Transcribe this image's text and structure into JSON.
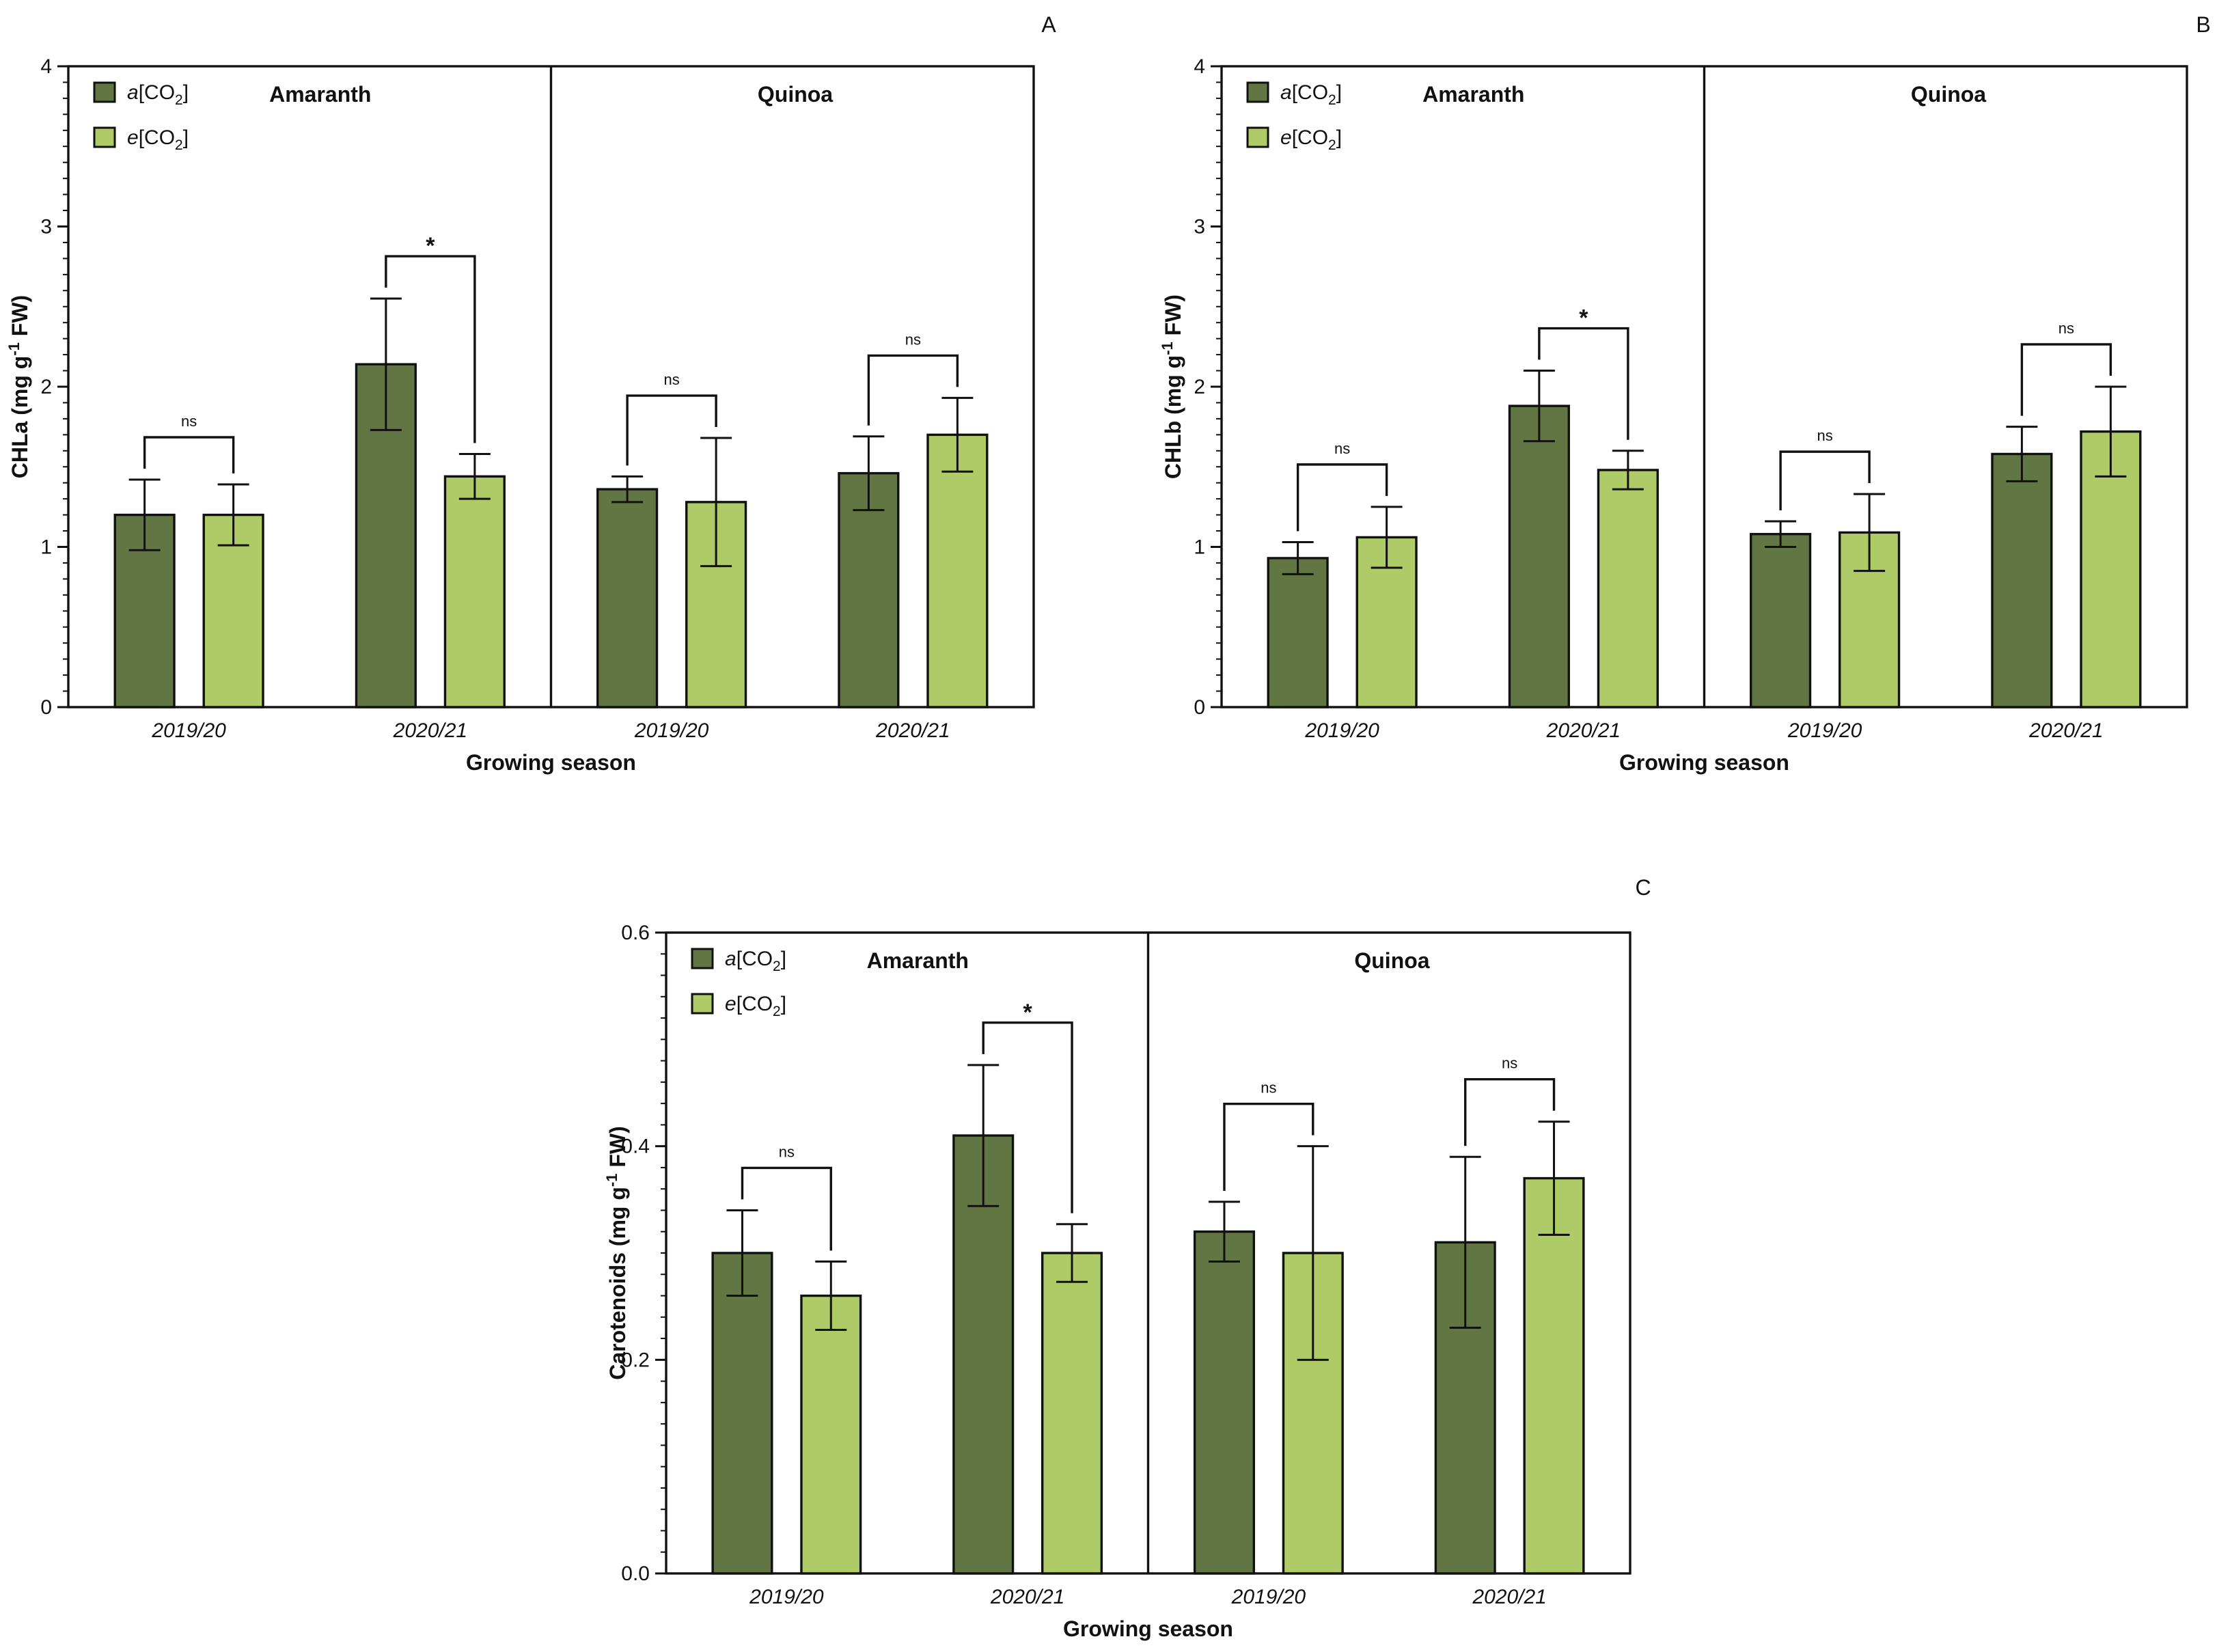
{
  "figure": {
    "x_title": "Growing season",
    "legend": [
      {
        "prefix": "a",
        "text": "[CO",
        "sub": "2",
        "suffix": "]",
        "color": "#627644"
      },
      {
        "prefix": "e",
        "text": "[CO",
        "sub": "2",
        "suffix": "]",
        "color": "#aecb68"
      }
    ],
    "groups": [
      "Amaranth",
      "Quinoa"
    ],
    "colors": {
      "ambient": "#627644",
      "elevated": "#aecb68",
      "axis": "#111111"
    }
  },
  "chart_data": [
    {
      "panel": "A",
      "type": "bar",
      "ylabel": {
        "main": "CHLa (mg g",
        "sup": "-1",
        "tail": " FW)"
      },
      "xlabel": "Growing season",
      "ylim": [
        0,
        4
      ],
      "yticks": [
        "0",
        "1",
        "2",
        "3",
        "4"
      ],
      "groups": [
        "Amaranth",
        "Quinoa"
      ],
      "categories": [
        "2019/20",
        "2020/21",
        "2019/20",
        "2020/21"
      ],
      "series": [
        {
          "name": "a[CO2]",
          "values": [
            1.2,
            2.14,
            1.36,
            1.46
          ],
          "errors": [
            0.22,
            0.41,
            0.08,
            0.23
          ]
        },
        {
          "name": "e[CO2]",
          "values": [
            1.2,
            1.44,
            1.28,
            1.7
          ],
          "errors": [
            0.19,
            0.14,
            0.4,
            0.23
          ]
        }
      ],
      "significance": [
        "ns",
        "*",
        "ns",
        "ns"
      ]
    },
    {
      "panel": "B",
      "type": "bar",
      "ylabel": {
        "main": "CHLb (mg g",
        "sup": "-1",
        "tail": " FW)"
      },
      "xlabel": "Growing season",
      "ylim": [
        0,
        4
      ],
      "yticks": [
        "0",
        "1",
        "2",
        "3",
        "4"
      ],
      "groups": [
        "Amaranth",
        "Quinoa"
      ],
      "categories": [
        "2019/20",
        "2020/21",
        "2019/20",
        "2020/21"
      ],
      "series": [
        {
          "name": "a[CO2]",
          "values": [
            0.93,
            1.88,
            1.08,
            1.58
          ],
          "errors": [
            0.1,
            0.22,
            0.08,
            0.17
          ]
        },
        {
          "name": "e[CO2]",
          "values": [
            1.06,
            1.48,
            1.09,
            1.72
          ],
          "errors": [
            0.19,
            0.12,
            0.24,
            0.28
          ]
        }
      ],
      "significance": [
        "ns",
        "*",
        "ns",
        "ns"
      ]
    },
    {
      "panel": "C",
      "type": "bar",
      "ylabel": {
        "main": "Carotenoids (mg g",
        "sup": "-1",
        "tail": " FW)"
      },
      "xlabel": "Growing season",
      "ylim": [
        0,
        0.6
      ],
      "yticks": [
        "0.0",
        "0.2",
        "0.4",
        "0.6"
      ],
      "groups": [
        "Amaranth",
        "Quinoa"
      ],
      "categories": [
        "2019/20",
        "2020/21",
        "2019/20",
        "2020/21"
      ],
      "series": [
        {
          "name": "a[CO2]",
          "values": [
            0.3,
            0.41,
            0.32,
            0.31
          ],
          "errors": [
            0.04,
            0.066,
            0.028,
            0.08
          ]
        },
        {
          "name": "e[CO2]",
          "values": [
            0.26,
            0.3,
            0.3,
            0.37
          ],
          "errors": [
            0.032,
            0.027,
            0.1,
            0.053
          ]
        }
      ],
      "significance": [
        "ns",
        "*",
        "ns",
        "ns"
      ]
    }
  ]
}
